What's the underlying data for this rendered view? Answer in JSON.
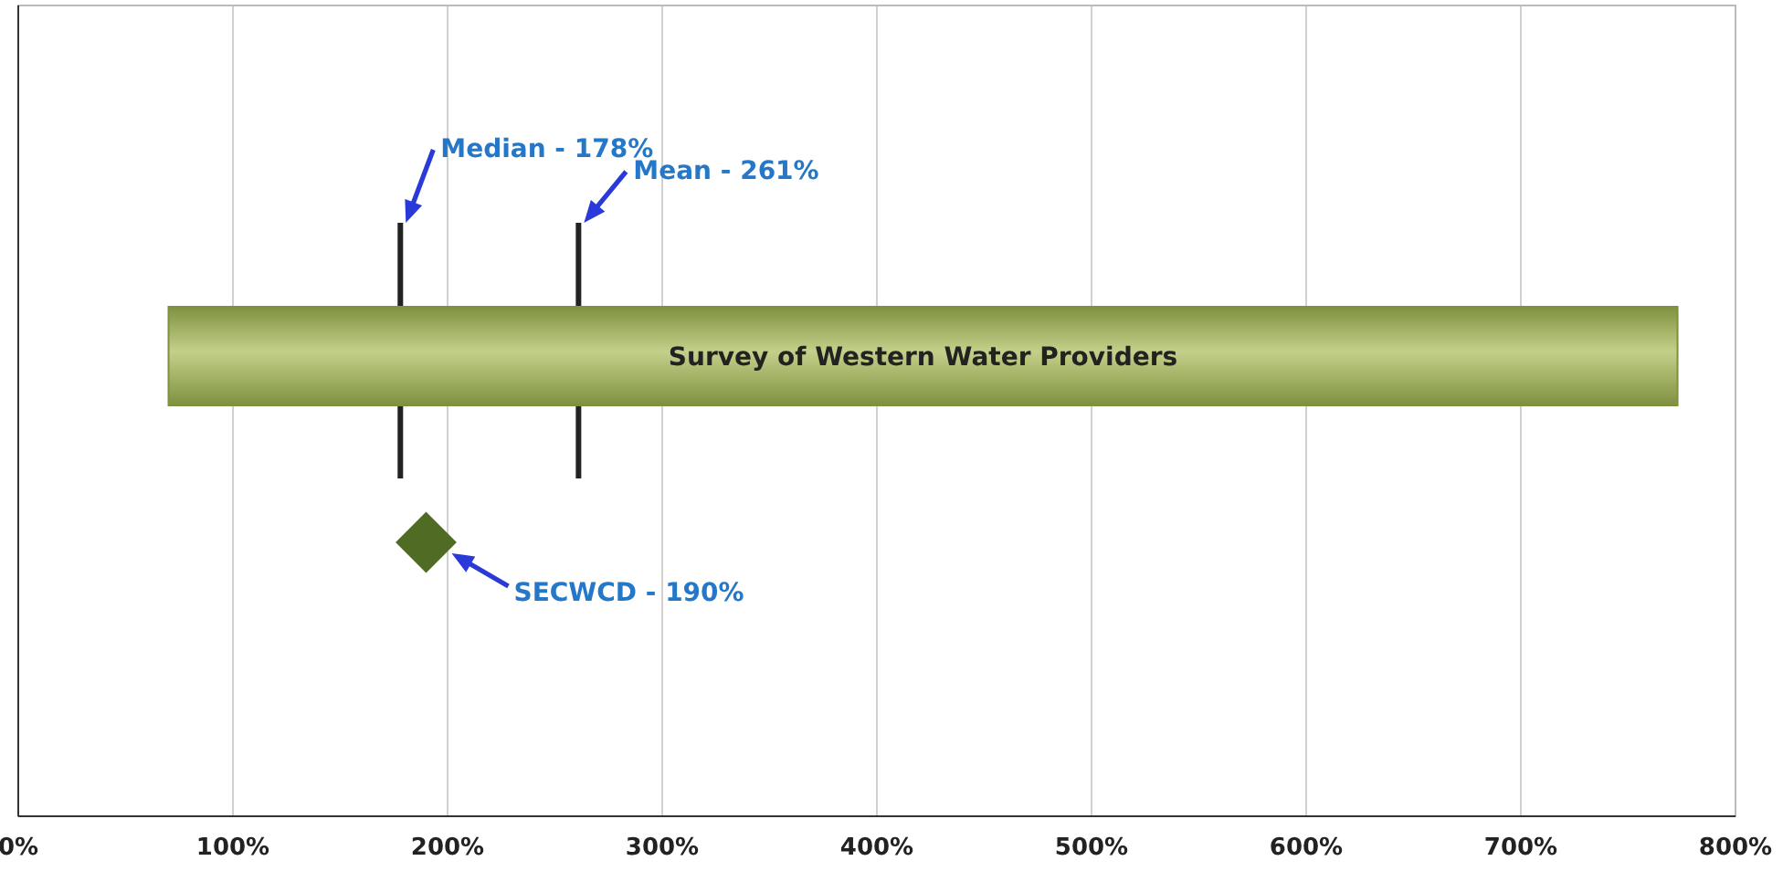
{
  "chart_data": {
    "type": "bar",
    "orientation": "horizontal",
    "categories": [
      null
    ],
    "series": [
      {
        "name": "Survey of Western Water Providers",
        "type": "bar",
        "color": "#7f9140",
        "base": [
          70
        ],
        "values": [
          703
        ]
      },
      {
        "name": "SECWCD - 190%",
        "type": "scatter",
        "color": "#4f6b24",
        "values": [
          190
        ],
        "marker": "diamond"
      }
    ],
    "xlim": [
      0,
      800
    ],
    "xticks": [
      {
        "value": 0,
        "label": "0%"
      },
      {
        "value": 100,
        "label": "100%"
      },
      {
        "value": 200,
        "label": "200%"
      },
      {
        "value": 300,
        "label": "300%"
      },
      {
        "value": 400,
        "label": "400%"
      },
      {
        "value": 500,
        "label": "500%"
      },
      {
        "value": 600,
        "label": "600%"
      },
      {
        "value": 700,
        "label": "700%"
      },
      {
        "value": 800,
        "label": "800%"
      }
    ],
    "grid": "x",
    "ref_lines": [
      {
        "axis": "x",
        "value": 178,
        "label": "Median - 178%",
        "color": "#222222"
      },
      {
        "axis": "x",
        "value": 261,
        "label": "Mean - 261%",
        "color": "#222222"
      }
    ]
  }
}
